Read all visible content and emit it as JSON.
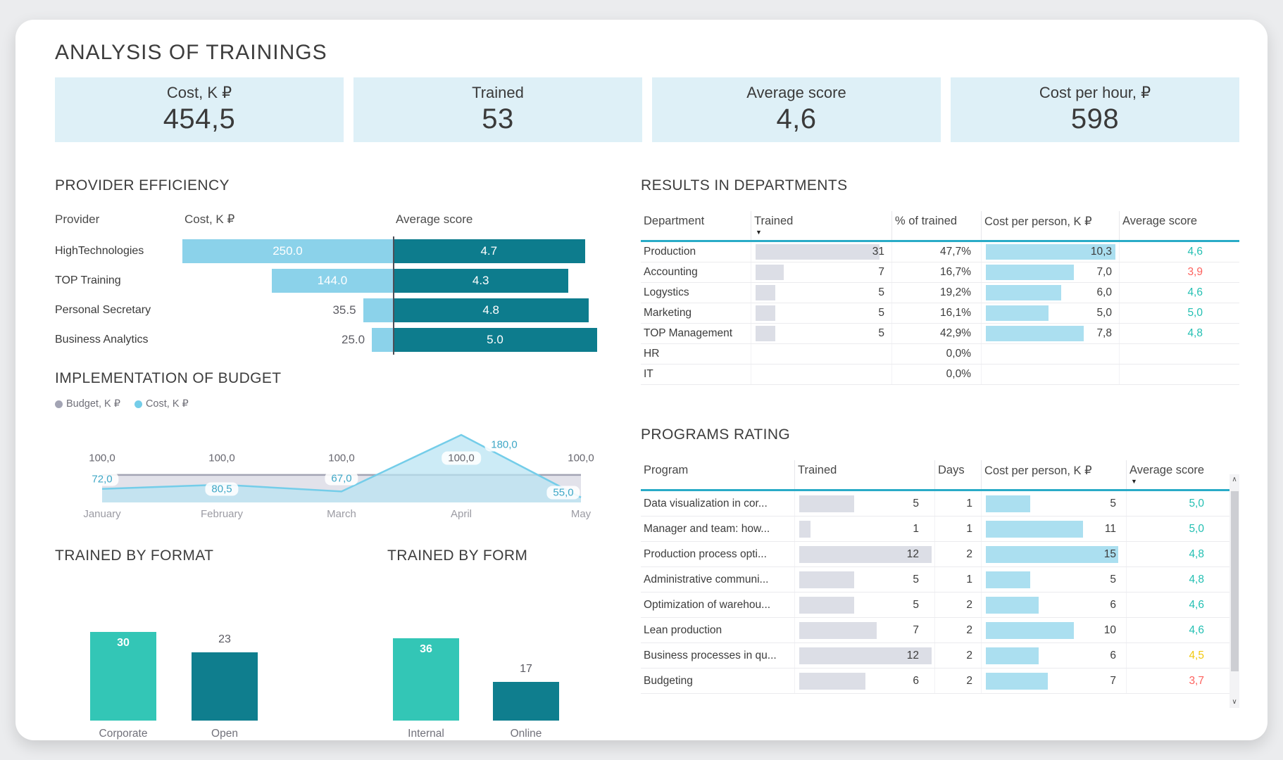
{
  "title": "ANALYSIS OF TRAININGS",
  "kpis": [
    {
      "label": "Cost, K ₽",
      "value": "454,5"
    },
    {
      "label": "Trained",
      "value": "53"
    },
    {
      "label": "Average score",
      "value": "4,6"
    },
    {
      "label": "Cost per hour, ₽",
      "value": "598"
    }
  ],
  "icons": {
    "sort_desc": "▼",
    "scroll_up": "∧",
    "scroll_down": "∨",
    "legend_dot": "●"
  },
  "colors": {
    "kpi_bg": "#def0f7",
    "cost_bar_light_blue": "#8bd2ea",
    "score_bar_dark_teal": "#0d7c8d",
    "turquoise": "#33c6b6",
    "dark_teal": "#0f7e8e",
    "table_bar_gray": "#dcdee6",
    "table_bar_blue": "#abdff0",
    "header_underline": "#29abc7",
    "score_good": "#22bfb2",
    "score_warn": "#f2c80f",
    "score_bad": "#fd625e"
  },
  "chart_data": [
    {
      "id": "provider_efficiency",
      "type": "bar",
      "variant": "tornado",
      "title": "PROVIDER EFFICIENCY",
      "columns": [
        "Provider",
        "Cost, K ₽",
        "Average score"
      ],
      "categories": [
        "HighTechnologies",
        "TOP Training",
        "Personal Secretary",
        "Business Analytics"
      ],
      "series": [
        {
          "name": "Cost, K ₽",
          "values": [
            250,
            144,
            35.5,
            25
          ],
          "labels": [
            "250.0",
            "144.0",
            "35.5",
            "25.0"
          ],
          "max": 250,
          "color": "#8bd2ea",
          "label_inside": [
            true,
            true,
            false,
            false
          ]
        },
        {
          "name": "Average score",
          "values": [
            4.7,
            4.3,
            4.8,
            5.0
          ],
          "labels": [
            "4.7",
            "4.3",
            "4.8",
            "5.0"
          ],
          "max": 5,
          "color": "#0d7c8d"
        }
      ]
    },
    {
      "id": "budget",
      "type": "area",
      "title": "IMPLEMENTATION OF BUDGET",
      "x": [
        "January",
        "February",
        "March",
        "April",
        "May"
      ],
      "ylim": [
        45,
        190
      ],
      "legend_position": "top",
      "series": [
        {
          "name": "Budget, K ₽",
          "values": [
            100,
            100,
            100,
            100,
            100
          ],
          "labels": [
            "100,0",
            "100,0",
            "100,0",
            "100,0",
            "100,0"
          ],
          "color": "#a3a4b4",
          "fill": "#e2e2ea"
        },
        {
          "name": "Cost, K ₽",
          "values": [
            72,
            80.5,
            67,
            180,
            55
          ],
          "labels": [
            "72,0",
            "80,5",
            "67,0",
            "180,0",
            "55,0"
          ],
          "color": "#74cde9",
          "fill": "#b9e3f2"
        }
      ]
    },
    {
      "id": "trained_by_format",
      "type": "bar",
      "title": "TRAINED BY FORMAT",
      "categories": [
        "Corporate",
        "Open"
      ],
      "values": [
        30,
        23
      ],
      "labels": [
        "30",
        "23"
      ],
      "colors": [
        "#33c6b6",
        "#0f7e8e"
      ]
    },
    {
      "id": "trained_by_form",
      "type": "bar",
      "title": "TRAINED BY FORM",
      "categories": [
        "Internal",
        "Online"
      ],
      "values": [
        36,
        17
      ],
      "labels": [
        "36",
        "17"
      ],
      "colors": [
        "#33c6b6",
        "#0f7e8e"
      ]
    },
    {
      "id": "departments",
      "type": "table",
      "title": "RESULTS IN DEPARTMENTS",
      "columns": [
        "Department",
        "Trained",
        "% of trained",
        "Cost per person, K ₽",
        "Average score"
      ],
      "sort_column": 1,
      "bar_max": {
        "trained": 31,
        "cost": 10.3
      },
      "rows": [
        {
          "department": "Production",
          "trained": 31,
          "trained_label": "31",
          "pct": "47,7%",
          "cost": 10.3,
          "cost_label": "10,3",
          "score": "4,6",
          "score_color": "#22bfb2"
        },
        {
          "department": "Accounting",
          "trained": 7,
          "trained_label": "7",
          "pct": "16,7%",
          "cost": 7,
          "cost_label": "7,0",
          "score": "3,9",
          "score_color": "#fd625e"
        },
        {
          "department": "Logystics",
          "trained": 5,
          "trained_label": "5",
          "pct": "19,2%",
          "cost": 6,
          "cost_label": "6,0",
          "score": "4,6",
          "score_color": "#22bfb2"
        },
        {
          "department": "Marketing",
          "trained": 5,
          "trained_label": "5",
          "pct": "16,1%",
          "cost": 5,
          "cost_label": "5,0",
          "score": "5,0",
          "score_color": "#22bfb2"
        },
        {
          "department": "TOP Management",
          "trained": 5,
          "trained_label": "5",
          "pct": "42,9%",
          "cost": 7.8,
          "cost_label": "7,8",
          "score": "4,8",
          "score_color": "#22bfb2"
        },
        {
          "department": "HR",
          "trained": null,
          "trained_label": "",
          "pct": "0,0%",
          "cost": null,
          "cost_label": "",
          "score": "",
          "score_color": ""
        },
        {
          "department": "IT",
          "trained": null,
          "trained_label": "",
          "pct": "0,0%",
          "cost": null,
          "cost_label": "",
          "score": "",
          "score_color": ""
        }
      ]
    },
    {
      "id": "programs",
      "type": "table",
      "title": "PROGRAMS RATING",
      "columns": [
        "Program",
        "Trained",
        "Days",
        "Cost per person, K ₽",
        "Average score"
      ],
      "sort_column": 4,
      "bar_max": {
        "trained": 12,
        "cost": 15
      },
      "rows": [
        {
          "program": "Data visualization in cor...",
          "trained": 5,
          "trained_label": "5",
          "days": "1",
          "cost": 5,
          "cost_label": "5",
          "score": "5,0",
          "score_color": "#22bfb2"
        },
        {
          "program": "Manager and team: how...",
          "trained": 1,
          "trained_label": "1",
          "days": "1",
          "cost": 11,
          "cost_label": "11",
          "score": "5,0",
          "score_color": "#22bfb2"
        },
        {
          "program": "Production process opti...",
          "trained": 12,
          "trained_label": "12",
          "days": "2",
          "cost": 15,
          "cost_label": "15",
          "score": "4,8",
          "score_color": "#22bfb2"
        },
        {
          "program": "Administrative communi...",
          "trained": 5,
          "trained_label": "5",
          "days": "1",
          "cost": 5,
          "cost_label": "5",
          "score": "4,8",
          "score_color": "#22bfb2"
        },
        {
          "program": "Optimization of warehou...",
          "trained": 5,
          "trained_label": "5",
          "days": "2",
          "cost": 6,
          "cost_label": "6",
          "score": "4,6",
          "score_color": "#22bfb2"
        },
        {
          "program": "Lean production",
          "trained": 7,
          "trained_label": "7",
          "days": "2",
          "cost": 10,
          "cost_label": "10",
          "score": "4,6",
          "score_color": "#22bfb2"
        },
        {
          "program": "Business processes in qu...",
          "trained": 12,
          "trained_label": "12",
          "days": "2",
          "cost": 6,
          "cost_label": "6",
          "score": "4,5",
          "score_color": "#f2c80f"
        },
        {
          "program": "Budgeting",
          "trained": 6,
          "trained_label": "6",
          "days": "2",
          "cost": 7,
          "cost_label": "7",
          "score": "3,7",
          "score_color": "#fd625e"
        }
      ]
    }
  ]
}
